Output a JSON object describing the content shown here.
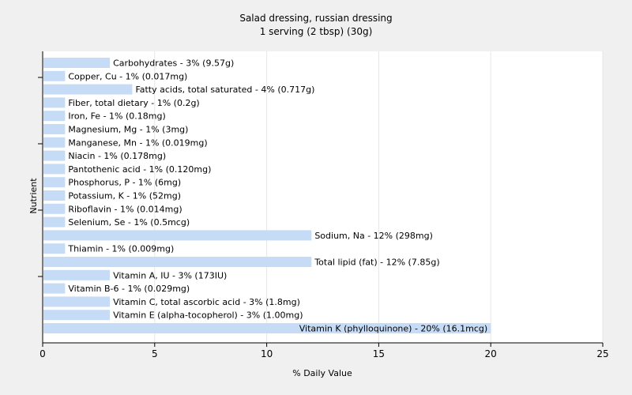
{
  "chart_data": {
    "type": "bar",
    "orientation": "horizontal",
    "title": "Salad dressing, russian dressing",
    "subtitle": "1 serving (2 tbsp) (30g)",
    "xlabel": "% Daily Value",
    "ylabel": "Nutrient",
    "xlim": [
      0,
      25
    ],
    "xticks": [
      0,
      5,
      10,
      15,
      20,
      25
    ],
    "grid": true,
    "bar_color": "#c6dcf6",
    "categories": [
      "Carbohydrates",
      "Copper, Cu",
      "Fatty acids, total saturated",
      "Fiber, total dietary",
      "Iron, Fe",
      "Magnesium, Mg",
      "Manganese, Mn",
      "Niacin",
      "Pantothenic acid",
      "Phosphorus, P",
      "Potassium, K",
      "Riboflavin",
      "Selenium, Se",
      "Sodium, Na",
      "Thiamin",
      "Total lipid (fat)",
      "Vitamin A, IU",
      "Vitamin B-6",
      "Vitamin C, total ascorbic acid",
      "Vitamin E (alpha-tocopherol)",
      "Vitamin K (phylloquinone)"
    ],
    "values": [
      3,
      1,
      4,
      1,
      1,
      1,
      1,
      1,
      1,
      1,
      1,
      1,
      1,
      12,
      1,
      12,
      3,
      1,
      3,
      3,
      20
    ],
    "labels": [
      "Carbohydrates - 3% (9.57g)",
      "Copper, Cu - 1% (0.017mg)",
      "Fatty acids, total saturated - 4% (0.717g)",
      "Fiber, total dietary - 1% (0.2g)",
      "Iron, Fe - 1% (0.18mg)",
      "Magnesium, Mg - 1% (3mg)",
      "Manganese, Mn - 1% (0.019mg)",
      "Niacin - 1% (0.178mg)",
      "Pantothenic acid - 1% (0.120mg)",
      "Phosphorus, P - 1% (6mg)",
      "Potassium, K - 1% (52mg)",
      "Riboflavin - 1% (0.014mg)",
      "Selenium, Se - 1% (0.5mcg)",
      "Sodium, Na - 12% (298mg)",
      "Thiamin - 1% (0.009mg)",
      "Total lipid (fat) - 12% (7.85g)",
      "Vitamin A, IU - 3% (173IU)",
      "Vitamin B-6 - 1% (0.029mg)",
      "Vitamin C, total ascorbic acid - 3% (1.8mg)",
      "Vitamin E (alpha-tocopherol) - 3% (1.00mg)",
      "Vitamin K (phylloquinone) - 20% (16.1mcg)"
    ]
  }
}
